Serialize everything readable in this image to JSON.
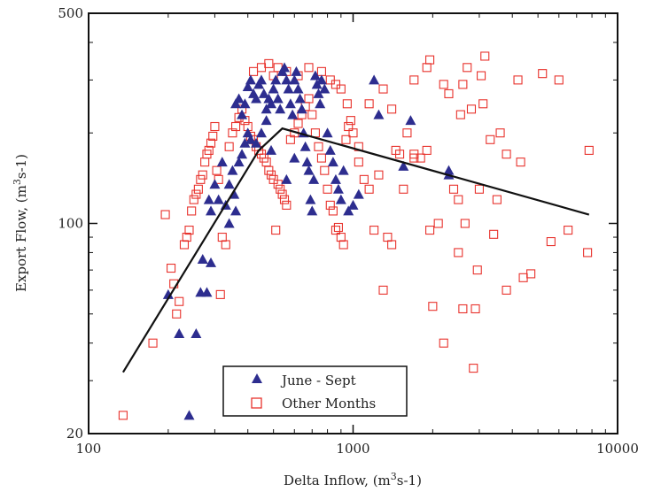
{
  "chart_data": {
    "type": "scatter",
    "xlabel_text": "Delta Inflow, (m",
    "xlabel_sup": "3",
    "xlabel_tail": "s-1)",
    "ylabel_text": "Export Flow, (m",
    "ylabel_sup": "3",
    "ylabel_tail": "s-1)",
    "x_scale": "log",
    "y_scale": "log",
    "xlim": [
      100,
      10000
    ],
    "ylim": [
      20,
      500
    ],
    "x_ticks": [
      {
        "value": 100,
        "label": "100"
      },
      {
        "value": 1000,
        "label": "1000"
      },
      {
        "value": 10000,
        "label": "10000"
      }
    ],
    "y_ticks": [
      {
        "value": 20,
        "label": "20"
      },
      {
        "value": 100,
        "label": "100"
      },
      {
        "value": 500,
        "label": "500"
      }
    ],
    "grid": false,
    "legend_position": "bottom-center",
    "colors": {
      "june_sept": "#2d2d8f",
      "other_months": "#e8322c",
      "fit_line": "#111111"
    },
    "fit_line": {
      "points": [
        [
          135,
          32
        ],
        [
          440,
          175
        ],
        [
          540,
          207
        ],
        [
          7800,
          107
        ]
      ]
    },
    "series": [
      {
        "name": "June - Sept",
        "marker": "filled-triangle",
        "points": [
          [
            200,
            58
          ],
          [
            220,
            43
          ],
          [
            240,
            23
          ],
          [
            255,
            43
          ],
          [
            265,
            59
          ],
          [
            270,
            76
          ],
          [
            280,
            59
          ],
          [
            290,
            74
          ],
          [
            285,
            120
          ],
          [
            290,
            110
          ],
          [
            300,
            135
          ],
          [
            310,
            120
          ],
          [
            320,
            160
          ],
          [
            330,
            115
          ],
          [
            340,
            100
          ],
          [
            340,
            135
          ],
          [
            350,
            150
          ],
          [
            355,
            125
          ],
          [
            360,
            110
          ],
          [
            370,
            160
          ],
          [
            380,
            170
          ],
          [
            390,
            185
          ],
          [
            400,
            200
          ],
          [
            410,
            190
          ],
          [
            430,
            185
          ],
          [
            450,
            200
          ],
          [
            470,
            220
          ],
          [
            490,
            175
          ],
          [
            360,
            250
          ],
          [
            370,
            260
          ],
          [
            380,
            230
          ],
          [
            390,
            250
          ],
          [
            400,
            285
          ],
          [
            410,
            300
          ],
          [
            420,
            270
          ],
          [
            430,
            260
          ],
          [
            440,
            290
          ],
          [
            450,
            300
          ],
          [
            460,
            270
          ],
          [
            470,
            240
          ],
          [
            480,
            260
          ],
          [
            490,
            250
          ],
          [
            500,
            280
          ],
          [
            510,
            300
          ],
          [
            520,
            260
          ],
          [
            530,
            240
          ],
          [
            540,
            320
          ],
          [
            550,
            330
          ],
          [
            560,
            300
          ],
          [
            570,
            280
          ],
          [
            580,
            250
          ],
          [
            590,
            230
          ],
          [
            600,
            300
          ],
          [
            610,
            320
          ],
          [
            620,
            280
          ],
          [
            630,
            260
          ],
          [
            640,
            240
          ],
          [
            650,
            200
          ],
          [
            660,
            180
          ],
          [
            670,
            160
          ],
          [
            680,
            150
          ],
          [
            690,
            120
          ],
          [
            700,
            110
          ],
          [
            710,
            140
          ],
          [
            720,
            310
          ],
          [
            730,
            290
          ],
          [
            740,
            270
          ],
          [
            750,
            250
          ],
          [
            760,
            300
          ],
          [
            780,
            280
          ],
          [
            800,
            200
          ],
          [
            820,
            175
          ],
          [
            840,
            160
          ],
          [
            860,
            140
          ],
          [
            880,
            130
          ],
          [
            900,
            120
          ],
          [
            920,
            150
          ],
          [
            960,
            110
          ],
          [
            1000,
            115
          ],
          [
            1050,
            125
          ],
          [
            1200,
            300
          ],
          [
            1250,
            230
          ],
          [
            1550,
            155
          ],
          [
            1650,
            220
          ],
          [
            2300,
            150
          ],
          [
            2300,
            145
          ],
          [
            600,
            165
          ],
          [
            560,
            140
          ]
        ]
      },
      {
        "name": "Other Months",
        "marker": "open-square",
        "points": [
          [
            135,
            23
          ],
          [
            175,
            40
          ],
          [
            195,
            107
          ],
          [
            205,
            71
          ],
          [
            210,
            63
          ],
          [
            215,
            50
          ],
          [
            220,
            55
          ],
          [
            230,
            85
          ],
          [
            235,
            90
          ],
          [
            240,
            95
          ],
          [
            245,
            110
          ],
          [
            250,
            120
          ],
          [
            255,
            125
          ],
          [
            260,
            130
          ],
          [
            265,
            140
          ],
          [
            270,
            145
          ],
          [
            275,
            160
          ],
          [
            280,
            170
          ],
          [
            285,
            175
          ],
          [
            290,
            185
          ],
          [
            295,
            195
          ],
          [
            300,
            210
          ],
          [
            305,
            150
          ],
          [
            310,
            140
          ],
          [
            315,
            58
          ],
          [
            320,
            90
          ],
          [
            330,
            85
          ],
          [
            340,
            180
          ],
          [
            350,
            200
          ],
          [
            360,
            210
          ],
          [
            370,
            225
          ],
          [
            380,
            240
          ],
          [
            390,
            220
          ],
          [
            400,
            210
          ],
          [
            410,
            195
          ],
          [
            420,
            190
          ],
          [
            430,
            180
          ],
          [
            440,
            175
          ],
          [
            450,
            170
          ],
          [
            460,
            165
          ],
          [
            470,
            160
          ],
          [
            480,
            150
          ],
          [
            490,
            145
          ],
          [
            500,
            140
          ],
          [
            510,
            95
          ],
          [
            520,
            135
          ],
          [
            530,
            130
          ],
          [
            540,
            125
          ],
          [
            550,
            120
          ],
          [
            560,
            115
          ],
          [
            580,
            190
          ],
          [
            600,
            200
          ],
          [
            620,
            215
          ],
          [
            640,
            230
          ],
          [
            660,
            245
          ],
          [
            680,
            260
          ],
          [
            700,
            230
          ],
          [
            720,
            200
          ],
          [
            740,
            180
          ],
          [
            760,
            165
          ],
          [
            780,
            150
          ],
          [
            800,
            130
          ],
          [
            820,
            115
          ],
          [
            840,
            110
          ],
          [
            860,
            95
          ],
          [
            880,
            97
          ],
          [
            900,
            90
          ],
          [
            920,
            85
          ],
          [
            940,
            190
          ],
          [
            960,
            210
          ],
          [
            980,
            220
          ],
          [
            1000,
            200
          ],
          [
            1050,
            160
          ],
          [
            1100,
            140
          ],
          [
            1150,
            130
          ],
          [
            1200,
            95
          ],
          [
            1250,
            145
          ],
          [
            1300,
            280
          ],
          [
            1350,
            90
          ],
          [
            1400,
            85
          ],
          [
            1450,
            175
          ],
          [
            1500,
            170
          ],
          [
            1600,
            200
          ],
          [
            1700,
            165
          ],
          [
            1800,
            165
          ],
          [
            1900,
            175
          ],
          [
            1950,
            350
          ],
          [
            2000,
            53
          ],
          [
            2100,
            100
          ],
          [
            2200,
            40
          ],
          [
            2300,
            270
          ],
          [
            2400,
            130
          ],
          [
            2500,
            120
          ],
          [
            2550,
            230
          ],
          [
            2600,
            52
          ],
          [
            2650,
            100
          ],
          [
            2700,
            330
          ],
          [
            2800,
            240
          ],
          [
            2850,
            33
          ],
          [
            2900,
            52
          ],
          [
            2950,
            70
          ],
          [
            3000,
            130
          ],
          [
            3050,
            310
          ],
          [
            3150,
            360
          ],
          [
            3300,
            190
          ],
          [
            3500,
            120
          ],
          [
            3600,
            200
          ],
          [
            3800,
            60
          ],
          [
            4200,
            300
          ],
          [
            4400,
            66
          ],
          [
            4700,
            68
          ],
          [
            5200,
            315
          ],
          [
            5600,
            87
          ],
          [
            6000,
            300
          ],
          [
            6500,
            95
          ],
          [
            7800,
            175
          ],
          [
            7700,
            80
          ],
          [
            420,
            320
          ],
          [
            450,
            330
          ],
          [
            480,
            340
          ],
          [
            500,
            310
          ],
          [
            520,
            330
          ],
          [
            560,
            320
          ],
          [
            620,
            310
          ],
          [
            680,
            330
          ],
          [
            760,
            320
          ],
          [
            820,
            300
          ],
          [
            860,
            290
          ],
          [
            900,
            280
          ],
          [
            950,
            250
          ],
          [
            1050,
            180
          ],
          [
            1150,
            250
          ],
          [
            1400,
            240
          ],
          [
            1700,
            300
          ],
          [
            1900,
            330
          ],
          [
            2200,
            290
          ],
          [
            2600,
            290
          ],
          [
            3100,
            250
          ],
          [
            3800,
            170
          ],
          [
            4300,
            160
          ],
          [
            3400,
            92
          ],
          [
            2500,
            80
          ],
          [
            1950,
            95
          ],
          [
            1700,
            170
          ],
          [
            1550,
            130
          ],
          [
            1300,
            60
          ]
        ]
      }
    ]
  }
}
